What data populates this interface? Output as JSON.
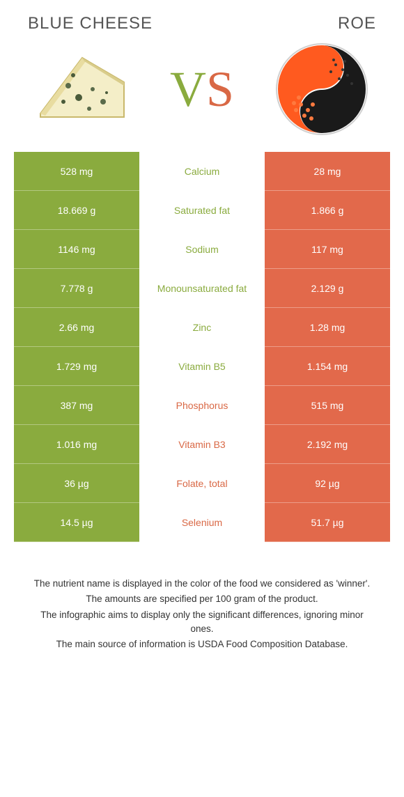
{
  "header": {
    "left_title": "BLUE CHEESE",
    "right_title": "ROE",
    "vs_v": "V",
    "vs_s": "S"
  },
  "colors": {
    "green": "#8aab3e",
    "orange_text": "#d96845",
    "orange_bg": "#e2694b",
    "white": "#ffffff"
  },
  "rows": [
    {
      "left": "528 mg",
      "label": "Calcium",
      "right": "28 mg",
      "winner": "left"
    },
    {
      "left": "18.669 g",
      "label": "Saturated fat",
      "right": "1.866 g",
      "winner": "left"
    },
    {
      "left": "1146 mg",
      "label": "Sodium",
      "right": "117 mg",
      "winner": "left"
    },
    {
      "left": "7.778 g",
      "label": "Monounsaturated fat",
      "right": "2.129 g",
      "winner": "left"
    },
    {
      "left": "2.66 mg",
      "label": "Zinc",
      "right": "1.28 mg",
      "winner": "left"
    },
    {
      "left": "1.729 mg",
      "label": "Vitamin B5",
      "right": "1.154 mg",
      "winner": "left"
    },
    {
      "left": "387 mg",
      "label": "Phosphorus",
      "right": "515 mg",
      "winner": "right"
    },
    {
      "left": "1.016 mg",
      "label": "Vitamin B3",
      "right": "2.192 mg",
      "winner": "right"
    },
    {
      "left": "36 µg",
      "label": "Folate, total",
      "right": "92 µg",
      "winner": "right"
    },
    {
      "left": "14.5 µg",
      "label": "Selenium",
      "right": "51.7 µg",
      "winner": "right"
    }
  ],
  "footnotes": [
    "The nutrient name is displayed in the color of the food we considered as 'winner'.",
    "The amounts are specified per 100 gram of the product.",
    "The infographic aims to display only the significant differences, ignoring minor ones.",
    "The main source of information is USDA Food Composition Database."
  ]
}
